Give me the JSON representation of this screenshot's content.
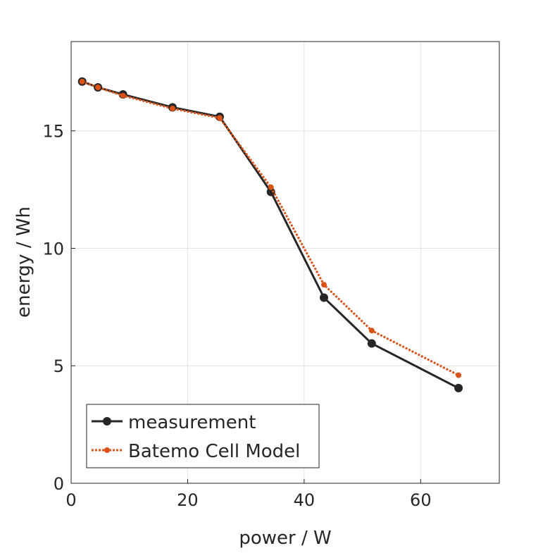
{
  "chart_data": {
    "type": "line",
    "title": "",
    "xlabel": "power / W",
    "ylabel": "energy / Wh",
    "xlim": [
      0,
      73.5
    ],
    "ylim": [
      0,
      18.8
    ],
    "xticks": [
      0,
      20,
      40,
      60
    ],
    "yticks": [
      0,
      5,
      10,
      15
    ],
    "grid": true,
    "legend_position": "bottom-left",
    "series": [
      {
        "name": "measurement",
        "color": "#262626",
        "style": "solid",
        "x": [
          1.9,
          4.6,
          8.9,
          17.4,
          25.5,
          34.3,
          43.4,
          51.6,
          66.5
        ],
        "y": [
          17.1,
          16.85,
          16.55,
          16.0,
          15.6,
          12.4,
          7.9,
          5.95,
          4.05
        ]
      },
      {
        "name": "Batemo Cell Model",
        "color": "#D95319",
        "style": "dotted",
        "x": [
          1.9,
          4.6,
          8.9,
          17.4,
          25.5,
          34.3,
          43.4,
          51.6,
          66.5
        ],
        "y": [
          17.1,
          16.85,
          16.5,
          15.95,
          15.55,
          12.6,
          8.45,
          6.5,
          4.6
        ]
      }
    ]
  }
}
